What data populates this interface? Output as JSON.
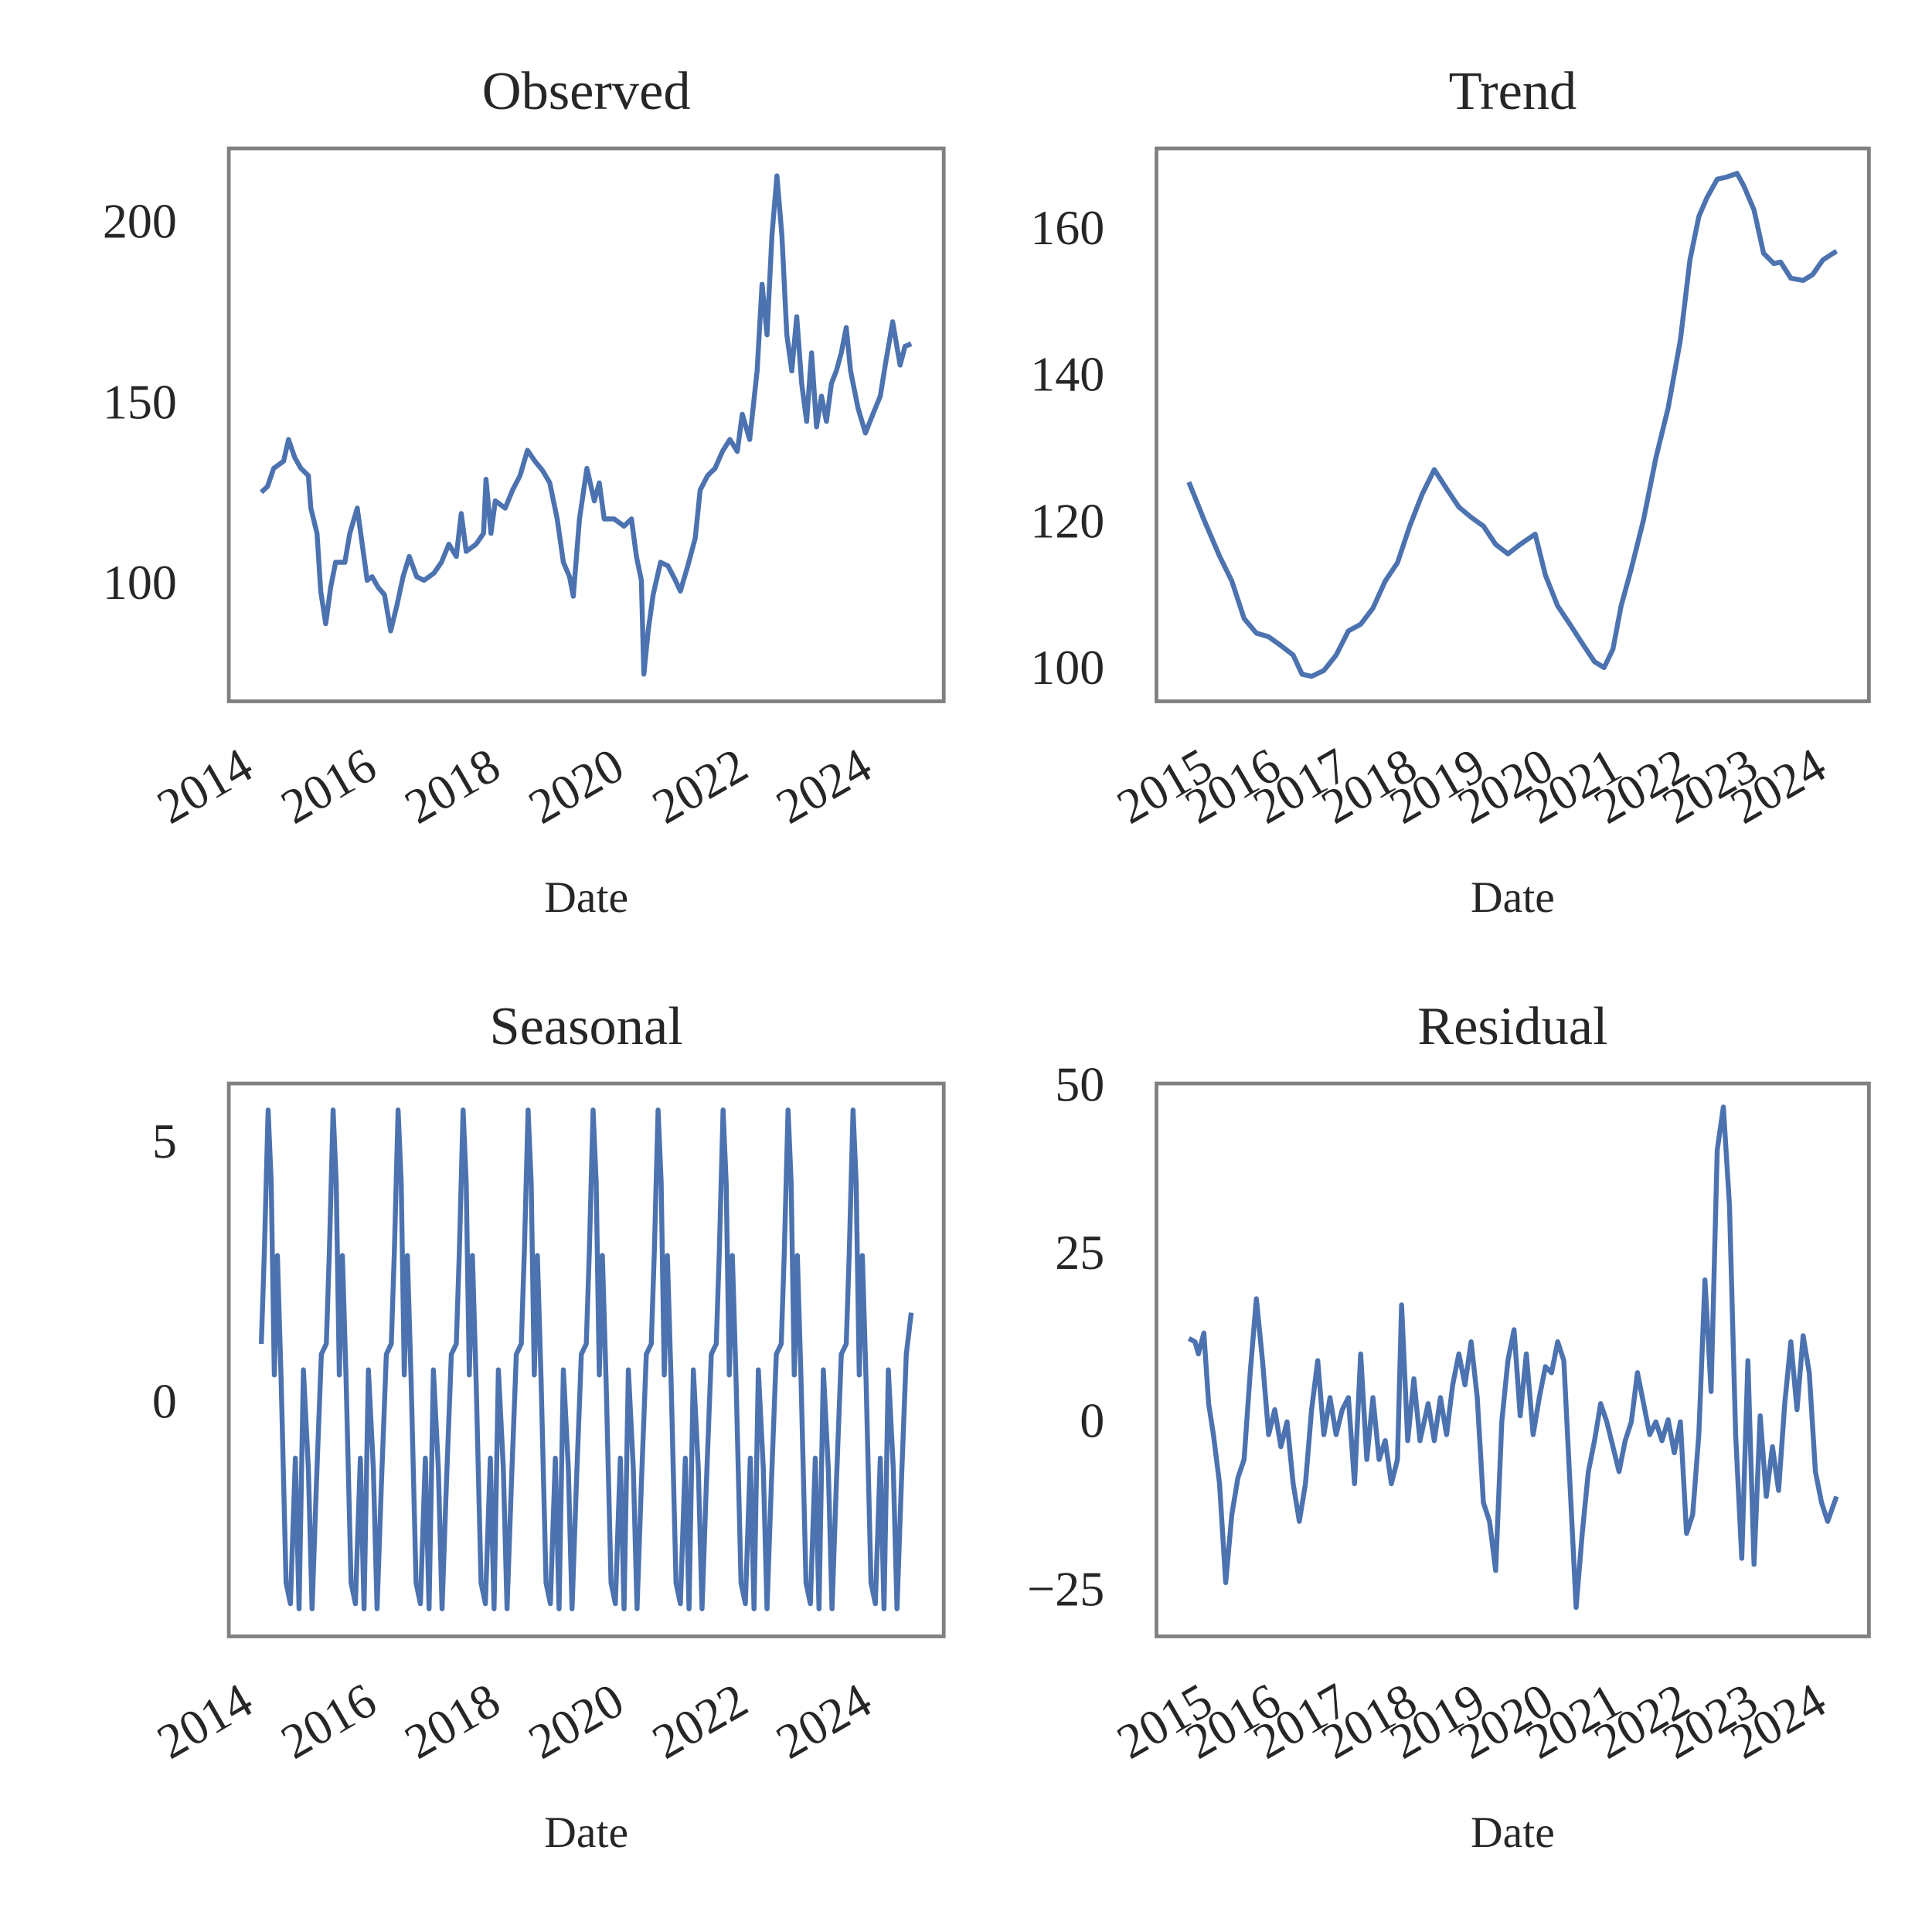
{
  "chart_data": [
    {
      "type": "line",
      "title": "Observed",
      "xlabel": "Date",
      "color": "#4c72b0",
      "x": [
        2014.3,
        2014.4,
        2014.5,
        2014.66,
        2014.74,
        2014.84,
        2014.94,
        2015.06,
        2015.1,
        2015.2,
        2015.26,
        2015.34,
        2015.42,
        2015.5,
        2015.65,
        2015.73,
        2015.85,
        2015.93,
        2016.01,
        2016.09,
        2016.19,
        2016.29,
        2016.39,
        2016.49,
        2016.59,
        2016.69,
        2016.81,
        2016.93,
        2017.09,
        2017.21,
        2017.33,
        2017.45,
        2017.53,
        2017.61,
        2017.77,
        2017.89,
        2017.93,
        2018.01,
        2018.08,
        2018.24,
        2018.36,
        2018.48,
        2018.6,
        2018.72,
        2018.84,
        2018.96,
        2019.08,
        2019.18,
        2019.28,
        2019.34,
        2019.44,
        2019.56,
        2019.68,
        2019.76,
        2019.84,
        2020.0,
        2020.16,
        2020.28,
        2020.36,
        2020.44,
        2020.48,
        2020.55,
        2020.63,
        2020.75,
        2020.87,
        2020.99,
        2021.07,
        2021.19,
        2021.31,
        2021.39,
        2021.51,
        2021.63,
        2021.75,
        2021.87,
        2021.99,
        2022.07,
        2022.19,
        2022.31,
        2022.39,
        2022.47,
        2022.55,
        2022.63,
        2022.71,
        2022.79,
        2022.87,
        2022.95,
        2023.03,
        2023.11,
        2023.19,
        2023.27,
        2023.35,
        2023.43,
        2023.51,
        2023.59,
        2023.67,
        2023.75,
        2023.82,
        2023.94,
        2024.06,
        2024.18,
        2024.3,
        2024.38,
        2024.5,
        2024.62,
        2024.7,
        2024.8
      ],
      "values": [
        126.4,
        128,
        133,
        135,
        141,
        136,
        133,
        131,
        122,
        115,
        99,
        90,
        100,
        107,
        107,
        115,
        122,
        112,
        102,
        103,
        100,
        98,
        88,
        95,
        103,
        108.6,
        103,
        102,
        104,
        107,
        112,
        108.6,
        120.5,
        110,
        112,
        115,
        130,
        115,
        124,
        122,
        127,
        131,
        138,
        135,
        132.5,
        129,
        119,
        107,
        103,
        97.6,
        119,
        133,
        124,
        129,
        119,
        119,
        117,
        119,
        108.6,
        102,
        76,
        88,
        98,
        107,
        106,
        102,
        99,
        106,
        113.7,
        127,
        131,
        133,
        137.7,
        141,
        137.7,
        148,
        141,
        160,
        184,
        170,
        197.6,
        214,
        197.6,
        170,
        160,
        175,
        156.5,
        146,
        165,
        144.5,
        153,
        146,
        156.5,
        160,
        165,
        172,
        160,
        149.7,
        142.8,
        148,
        153,
        161.6,
        173.6,
        161.6,
        166.8,
        167.5
      ],
      "xlim": [
        2013.775,
        2025.325
      ],
      "ylim": [
        68.5,
        221.6
      ],
      "xticks": [
        2014,
        2016,
        2018,
        2020,
        2022,
        2024
      ],
      "yticks": [
        100,
        150,
        200
      ]
    },
    {
      "type": "line",
      "title": "Trend",
      "xlabel": "Date",
      "color": "#4c72b0",
      "x": [
        2014.8,
        2015.02,
        2015.25,
        2015.43,
        2015.61,
        2015.79,
        2015.97,
        2016.15,
        2016.33,
        2016.46,
        2016.6,
        2016.78,
        2016.96,
        2017.14,
        2017.32,
        2017.5,
        2017.68,
        2017.86,
        2018.04,
        2018.22,
        2018.4,
        2018.58,
        2018.76,
        2018.94,
        2019.12,
        2019.3,
        2019.48,
        2019.66,
        2019.88,
        2020.03,
        2020.21,
        2020.39,
        2020.57,
        2020.75,
        2020.89,
        2021.02,
        2021.14,
        2021.29,
        2021.47,
        2021.65,
        2021.83,
        2022.01,
        2022.15,
        2022.28,
        2022.4,
        2022.55,
        2022.69,
        2022.84,
        2022.94,
        2023.09,
        2023.23,
        2023.38,
        2023.48,
        2023.63,
        2023.81,
        2023.95,
        2024.1,
        2024.3
      ],
      "values": [
        126,
        120.9,
        115.9,
        112.5,
        107.4,
        105.4,
        104.9,
        103.7,
        102.4,
        99.8,
        99.5,
        100.3,
        102.4,
        105.7,
        106.6,
        108.8,
        112.5,
        115,
        120,
        124.3,
        127.7,
        125.1,
        122.6,
        121.2,
        120,
        117.5,
        116.2,
        117.5,
        118.9,
        113.3,
        109.1,
        106.6,
        104,
        101.5,
        100.7,
        103.2,
        109.1,
        114.2,
        120.9,
        129.3,
        136.1,
        145.4,
        156.3,
        162.2,
        164.8,
        167.3,
        167.6,
        168.1,
        166.4,
        163.1,
        157.2,
        155.8,
        156,
        153.8,
        153.5,
        154.3,
        156.3,
        157.5
      ],
      "xlim": [
        2014.325,
        2024.775
      ],
      "ylim": [
        96.1,
        171.5
      ],
      "xticks": [
        2015,
        2016,
        2017,
        2018,
        2019,
        2020,
        2021,
        2022,
        2023,
        2024
      ],
      "yticks": [
        100,
        120,
        140,
        160
      ]
    },
    {
      "type": "line",
      "title": "Seasonal",
      "xlabel": "Date",
      "color": "#4c72b0",
      "x": [
        2014.3,
        2014.35,
        2014.41,
        2014.46,
        2014.51,
        2014.56,
        2014.62,
        2014.7,
        2014.77,
        2014.85,
        2014.91,
        2014.98,
        2015.06,
        2015.12,
        2015.19,
        2015.27,
        2015.35,
        2015.4,
        2015.46,
        2015.51,
        2015.56,
        2015.61,
        2015.67,
        2015.75,
        2015.82,
        2015.9,
        2015.96,
        2016.03,
        2016.11,
        2016.17,
        2016.24,
        2016.32,
        2016.4,
        2016.45,
        2016.51,
        2016.56,
        2016.61,
        2016.66,
        2016.72,
        2016.8,
        2016.87,
        2016.95,
        2017.01,
        2017.08,
        2017.16,
        2017.22,
        2017.29,
        2017.37,
        2017.45,
        2017.5,
        2017.56,
        2017.61,
        2017.66,
        2017.71,
        2017.77,
        2017.85,
        2017.92,
        2018.0,
        2018.06,
        2018.13,
        2018.21,
        2018.27,
        2018.34,
        2018.42,
        2018.5,
        2018.55,
        2018.61,
        2018.66,
        2018.71,
        2018.76,
        2018.82,
        2018.9,
        2018.97,
        2019.05,
        2019.11,
        2019.18,
        2019.26,
        2019.32,
        2019.39,
        2019.47,
        2019.55,
        2019.6,
        2019.66,
        2019.71,
        2019.76,
        2019.81,
        2019.87,
        2019.95,
        2020.02,
        2020.1,
        2020.16,
        2020.23,
        2020.31,
        2020.37,
        2020.44,
        2020.52,
        2020.6,
        2020.65,
        2020.71,
        2020.76,
        2020.81,
        2020.86,
        2020.92,
        2021.0,
        2021.07,
        2021.15,
        2021.21,
        2021.28,
        2021.36,
        2021.42,
        2021.49,
        2021.57,
        2021.65,
        2021.7,
        2021.76,
        2021.81,
        2021.86,
        2021.91,
        2021.97,
        2022.05,
        2022.12,
        2022.2,
        2022.26,
        2022.33,
        2022.41,
        2022.47,
        2022.54,
        2022.62,
        2022.7,
        2022.75,
        2022.81,
        2022.86,
        2022.91,
        2022.96,
        2023.02,
        2023.1,
        2023.17,
        2023.25,
        2023.31,
        2023.38,
        2023.46,
        2023.52,
        2023.59,
        2023.67,
        2023.75,
        2023.8,
        2023.86,
        2023.91,
        2023.96,
        2024.01,
        2024.07,
        2024.15,
        2024.22,
        2024.3,
        2024.36,
        2024.43,
        2024.51,
        2024.57,
        2024.64,
        2024.72,
        2024.8
      ],
      "values": [
        1.2,
        3.0,
        5.7,
        4.3,
        0.6,
        2.9,
        0.5,
        -3.4,
        -3.8,
        -1.0,
        -3.9,
        0.7,
        -1.2,
        -3.9,
        -1.5,
        1.0,
        1.2,
        3.0,
        5.7,
        4.3,
        0.6,
        2.9,
        0.5,
        -3.4,
        -3.8,
        -1.0,
        -3.9,
        0.7,
        -1.2,
        -3.9,
        -1.5,
        1.0,
        1.2,
        3.0,
        5.7,
        4.3,
        0.6,
        2.9,
        0.5,
        -3.4,
        -3.8,
        -1.0,
        -3.9,
        0.7,
        -1.2,
        -3.9,
        -1.5,
        1.0,
        1.2,
        3.0,
        5.7,
        4.3,
        0.6,
        2.9,
        0.5,
        -3.4,
        -3.8,
        -1.0,
        -3.9,
        0.7,
        -1.2,
        -3.9,
        -1.5,
        1.0,
        1.2,
        3.0,
        5.7,
        4.3,
        0.6,
        2.9,
        0.5,
        -3.4,
        -3.8,
        -1.0,
        -3.9,
        0.7,
        -1.2,
        -3.9,
        -1.5,
        1.0,
        1.2,
        3.0,
        5.7,
        4.3,
        0.6,
        2.9,
        0.5,
        -3.4,
        -3.8,
        -1.0,
        -3.9,
        0.7,
        -1.2,
        -3.9,
        -1.5,
        1.0,
        1.2,
        3.0,
        5.7,
        4.3,
        0.6,
        2.9,
        0.5,
        -3.4,
        -3.8,
        -1.0,
        -3.9,
        0.7,
        -1.2,
        -3.9,
        -1.5,
        1.0,
        1.2,
        3.0,
        5.7,
        4.3,
        0.6,
        2.9,
        0.5,
        -3.4,
        -3.8,
        -1.0,
        -3.9,
        0.7,
        -1.2,
        -3.9,
        -1.5,
        1.0,
        1.2,
        3.0,
        5.7,
        4.3,
        0.6,
        2.9,
        0.5,
        -3.4,
        -3.8,
        -1.0,
        -3.9,
        0.7,
        -1.2,
        -3.9,
        -1.5,
        1.0,
        1.2,
        3.0,
        5.7,
        4.3,
        0.6,
        2.9,
        0.5,
        -3.4,
        -3.8,
        -1.0,
        -3.9,
        0.7,
        -1.2,
        -3.9,
        -1.5,
        1.0,
        1.8
      ],
      "xlim": [
        2013.775,
        2025.325
      ],
      "ylim": [
        -4.43,
        6.21
      ],
      "xticks": [
        2014,
        2016,
        2018,
        2020,
        2022,
        2024
      ],
      "yticks": [
        0,
        5
      ]
    },
    {
      "type": "line",
      "title": "Residual",
      "xlabel": "Date",
      "color": "#4c72b0",
      "x": [
        2014.8,
        2014.89,
        2014.94,
        2015.02,
        2015.09,
        2015.16,
        2015.25,
        2015.34,
        2015.43,
        2015.52,
        2015.61,
        2015.7,
        2015.79,
        2015.88,
        2015.97,
        2016.06,
        2016.15,
        2016.24,
        2016.33,
        2016.42,
        2016.51,
        2016.6,
        2016.69,
        2016.78,
        2016.87,
        2016.96,
        2017.05,
        2017.14,
        2017.23,
        2017.32,
        2017.41,
        2017.5,
        2017.59,
        2017.68,
        2017.77,
        2017.86,
        2017.92,
        2018.01,
        2018.1,
        2018.19,
        2018.31,
        2018.4,
        2018.49,
        2018.58,
        2018.67,
        2018.76,
        2018.85,
        2018.94,
        2019.03,
        2019.12,
        2019.21,
        2019.3,
        2019.39,
        2019.48,
        2019.57,
        2019.66,
        2019.75,
        2019.85,
        2019.94,
        2020.03,
        2020.12,
        2020.21,
        2020.3,
        2020.39,
        2020.48,
        2020.57,
        2020.66,
        2020.75,
        2020.84,
        2020.93,
        2021.02,
        2021.11,
        2021.2,
        2021.29,
        2021.38,
        2021.47,
        2021.56,
        2021.65,
        2021.74,
        2021.83,
        2021.92,
        2022.01,
        2022.1,
        2022.19,
        2022.28,
        2022.37,
        2022.46,
        2022.55,
        2022.64,
        2022.73,
        2022.82,
        2022.91,
        2023.0,
        2023.09,
        2023.18,
        2023.27,
        2023.36,
        2023.45,
        2023.54,
        2023.63,
        2023.72,
        2023.81,
        2023.9,
        2023.99,
        2024.08,
        2024.17,
        2024.3
      ],
      "values": [
        13,
        12.5,
        10.7,
        13.8,
        3.3,
        -1.3,
        -8.6,
        -23.3,
        -13.2,
        -7.7,
        -5,
        7.9,
        18.9,
        9.7,
        -1.3,
        2.4,
        -3.1,
        0.6,
        -8.6,
        -14.2,
        -8.6,
        2.4,
        9.7,
        -1.3,
        4.2,
        -1.3,
        2.4,
        4.2,
        -8.6,
        10.7,
        -5,
        4.2,
        -5,
        -2.2,
        -8.6,
        -5,
        18,
        -2.2,
        7,
        -2.2,
        3.3,
        -2.2,
        4.2,
        -1.3,
        6.1,
        10.7,
        6.1,
        12.5,
        4.2,
        -11.4,
        -14.2,
        -21.5,
        0.6,
        9.7,
        14.3,
        1.5,
        10.7,
        -1.3,
        4.2,
        8.8,
        7.9,
        12.5,
        9.7,
        -8.6,
        -27,
        -16,
        -6.8,
        -2.2,
        3.3,
        0.6,
        -3.1,
        -6.8,
        -2.2,
        0.6,
        7.9,
        3.3,
        -1.3,
        0.6,
        -2.2,
        0.9,
        -4,
        0.6,
        -16,
        -13.2,
        -1.3,
        21.7,
        5.1,
        41,
        47.4,
        32.7,
        -1.3,
        -19.7,
        9.7,
        -20.6,
        1.5,
        -10.5,
        -3.1,
        -9.6,
        3.3,
        12.5,
        2.4,
        13.4,
        7.9,
        -6.8,
        -11.4,
        -14.2,
        -10.5
      ],
      "xlim": [
        2014.325,
        2024.775
      ],
      "ylim": [
        -31.3,
        50.9
      ],
      "xticks": [
        2015,
        2016,
        2017,
        2018,
        2019,
        2020,
        2021,
        2022,
        2023,
        2024
      ],
      "yticks": [
        {
          "value": -25,
          "label": "−25"
        },
        0,
        25,
        50
      ]
    }
  ]
}
